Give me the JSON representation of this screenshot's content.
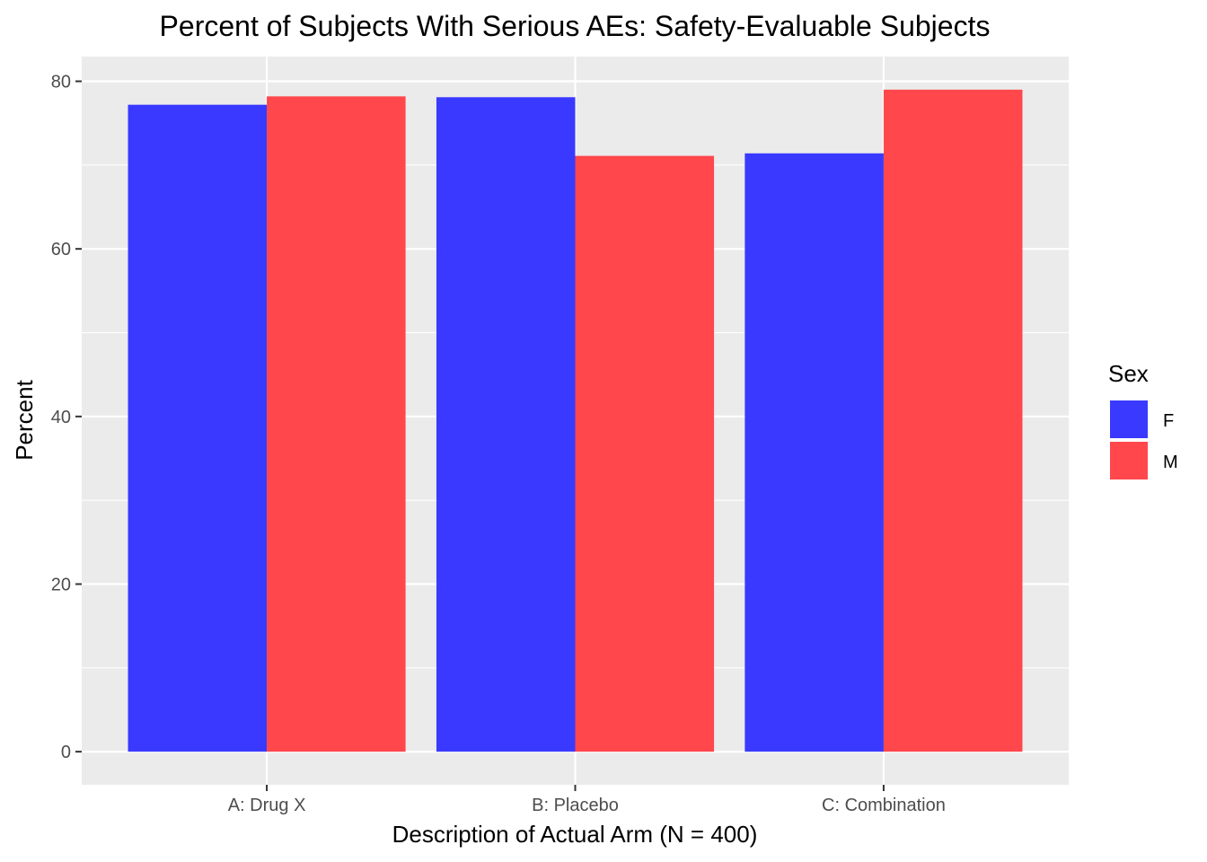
{
  "chart_data": {
    "type": "bar",
    "title": "Percent of Subjects With Serious AEs: Safety-Evaluable Subjects",
    "xlabel": "Description of Actual Arm (N = 400)",
    "ylabel": "Percent",
    "categories": [
      "A: Drug X",
      "B: Placebo",
      "C: Combination"
    ],
    "series": [
      {
        "name": "F",
        "color": "#3939FF",
        "values": [
          77.2,
          78.1,
          71.4
        ]
      },
      {
        "name": "M",
        "color": "#FF474C",
        "values": [
          78.2,
          71.1,
          79.0
        ]
      }
    ],
    "ylim": [
      -3.95,
      82.95
    ],
    "yticks": [
      0,
      20,
      40,
      60,
      80
    ],
    "grid": true,
    "legend": {
      "title": "Sex",
      "position": "right"
    }
  }
}
